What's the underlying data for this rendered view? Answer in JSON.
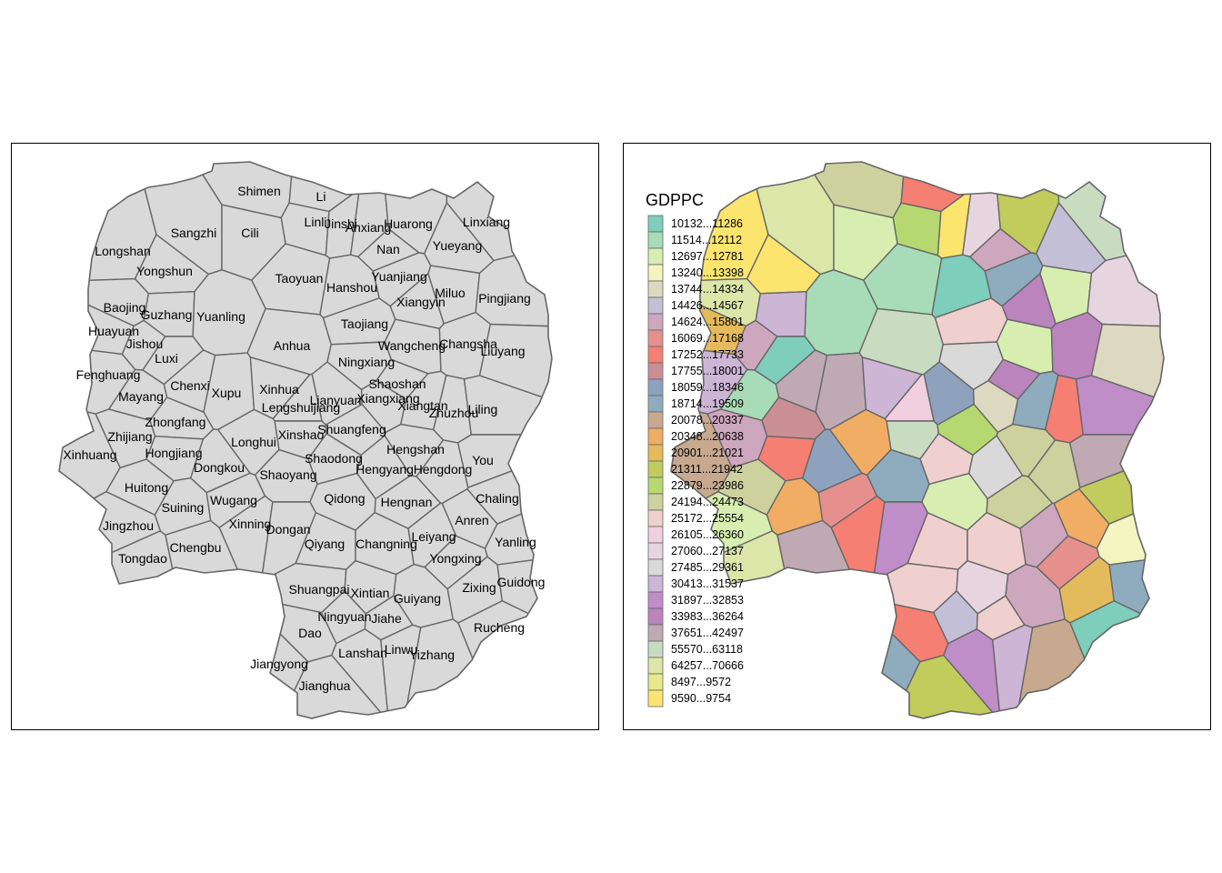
{
  "left_map": {
    "fill": "#d9d9d9",
    "border": "#666666",
    "labels": [
      "Shimen",
      "Li",
      "Linli",
      "Jinshi",
      "Anxiang",
      "Huarong",
      "Linxiang",
      "Sangzhi",
      "Cili",
      "Longshan",
      "Nan",
      "Yueyang",
      "Yongshun",
      "Taoyuan",
      "Yuanjiang",
      "Hanshou",
      "Miluo",
      "Pingjiang",
      "Baojing",
      "Xiangyin",
      "Guzhang",
      "Yuanling",
      "Taojiang",
      "Huayuan",
      "Jishou",
      "Anhua",
      "Wangcheng",
      "Changsha",
      "Liuyang",
      "Luxi",
      "Ningxiang",
      "Fenghuang",
      "Chenxi",
      "Shaoshan",
      "Xupu",
      "Xinhua",
      "Mayang",
      "Lianyuan",
      "Xiangxiang",
      "Lengshuijiang",
      "Xiangtan",
      "Zhuzhou",
      "Liling",
      "Zhongfang",
      "Xinshao",
      "Shuangfeng",
      "Zhijiang",
      "Longhui",
      "Hengshan",
      "Xinhuang",
      "Hongjiang",
      "You",
      "Shaodong",
      "Dongkou",
      "Hengyang",
      "Hengdong",
      "Shaoyang",
      "Huitong",
      "Wugang",
      "Qidong",
      "Hengnan",
      "Chaling",
      "Suining",
      "Xinning",
      "Anren",
      "Jingzhou",
      "Dongan",
      "Leiyang",
      "Yanling",
      "Chengbu",
      "Qiyang",
      "Changning",
      "Tongdao",
      "Yongxing",
      "Zixing",
      "Guidong",
      "Shuangpai",
      "Xintian",
      "Guiyang",
      "Ningyuan",
      "Jiahe",
      "Rucheng",
      "Dao",
      "Lanshan",
      "Linwu",
      "Yizhang",
      "Jiangyong",
      "Jianghua"
    ]
  },
  "right_map": {
    "border": "#666666"
  },
  "legend": {
    "title": "GDPPC",
    "classes": [
      {
        "label": "10132...11286",
        "color": "#7fcdbb"
      },
      {
        "label": "11514...12112",
        "color": "#a8dcb8"
      },
      {
        "label": "12697...12781",
        "color": "#d7eeb0"
      },
      {
        "label": "13240...13398",
        "color": "#f2f5c0"
      },
      {
        "label": "13744...14334",
        "color": "#ddd9c0"
      },
      {
        "label": "14426...14567",
        "color": "#c3bfd6"
      },
      {
        "label": "14624...15801",
        "color": "#cda7bd"
      },
      {
        "label": "16069...17168",
        "color": "#e6908e"
      },
      {
        "label": "17252...17733",
        "color": "#f47f72"
      },
      {
        "label": "17755...18001",
        "color": "#c98f94"
      },
      {
        "label": "18059...18346",
        "color": "#8ea2bd"
      },
      {
        "label": "18714...19509",
        "color": "#8eacbd"
      },
      {
        "label": "20078...20337",
        "color": "#c7a98f"
      },
      {
        "label": "20348...20638",
        "color": "#f1ad64"
      },
      {
        "label": "20901...21021",
        "color": "#e4bb5c"
      },
      {
        "label": "21311...21942",
        "color": "#c1cc5c"
      },
      {
        "label": "22879...23986",
        "color": "#b7d870"
      },
      {
        "label": "24194...24473",
        "color": "#cdd19e"
      },
      {
        "label": "25172...25554",
        "color": "#f0cfcf"
      },
      {
        "label": "26105...26360",
        "color": "#f1cfdf"
      },
      {
        "label": "27060...27137",
        "color": "#e6d5de"
      },
      {
        "label": "27485...29361",
        "color": "#d9d9d9"
      },
      {
        "label": "30413...31537",
        "color": "#cdb5d6"
      },
      {
        "label": "31897...32853",
        "color": "#bf8dc8"
      },
      {
        "label": "33983...36264",
        "color": "#bb84bd"
      },
      {
        "label": "37651...42497",
        "color": "#bfaab4"
      },
      {
        "label": "55570...63118",
        "color": "#c9dcc2"
      },
      {
        "label": "64257...70666",
        "color": "#dbe6a8"
      },
      {
        "label": "8497...9572",
        "color": "#e9e88a"
      },
      {
        "label": "9590...9754",
        "color": "#fbe56f"
      }
    ]
  }
}
